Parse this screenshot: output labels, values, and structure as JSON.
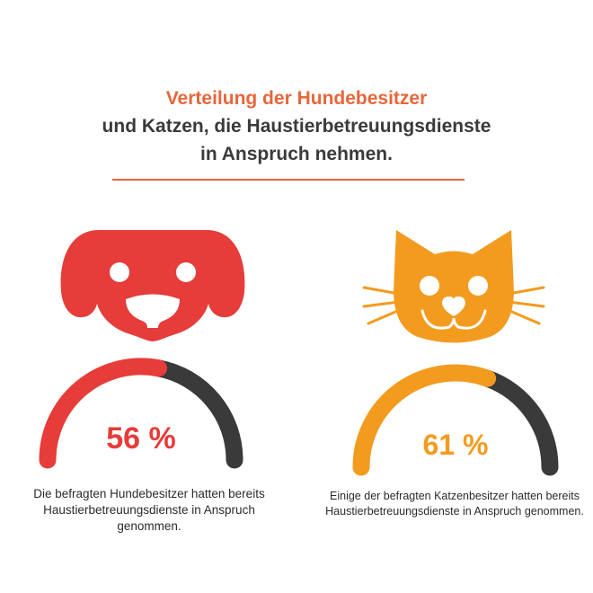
{
  "header": {
    "line1": "Verteilung der Hundebesitzer",
    "line2": "und Katzen, die Haustierbetreuungsdienste",
    "line3": "in Anspruch nehmen."
  },
  "colors": {
    "accent": "#e8663a",
    "dog": "#e63c3a",
    "cat": "#f39b1f",
    "remainder": "#3a3a3a",
    "text": "#3a3a3a"
  },
  "icons": {
    "dog": "dog-face-icon",
    "cat": "cat-face-icon"
  },
  "chart_data": [
    {
      "type": "gauge",
      "series": [
        {
          "name": "",
          "values": [
            56
          ]
        }
      ],
      "value_label": "56 %",
      "max": 100,
      "caption": "Die befragten Hundebesitzer hatten bereits Haustierbetreuungsdienste in Anspruch genommen.",
      "color": "#e63c3a"
    },
    {
      "type": "gauge",
      "series": [
        {
          "name": "",
          "values": [
            61
          ]
        }
      ],
      "value_label": "61 %",
      "max": 100,
      "caption": "Einige der befragten Katzenbesitzer hatten bereits Haustierbetreuungsdienste in Anspruch genommen.",
      "color": "#f39b1f"
    }
  ]
}
